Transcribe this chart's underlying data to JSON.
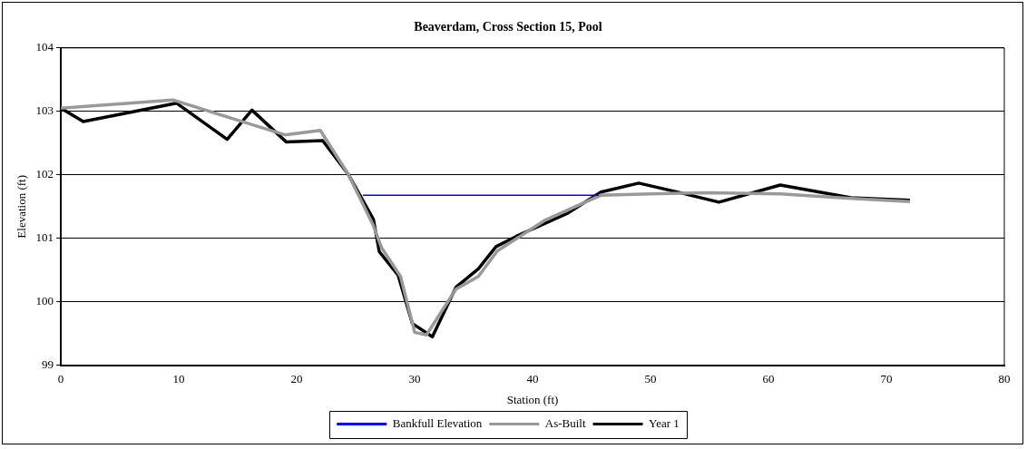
{
  "chart_data": {
    "type": "line",
    "title": "Beaverdam, Cross Section 15, Pool",
    "xlabel": "Station (ft)",
    "ylabel": "Elevation (ft)",
    "xlim": [
      0,
      80
    ],
    "xticks": [
      0,
      10,
      20,
      30,
      40,
      50,
      60,
      70,
      80
    ],
    "ylim": [
      99,
      104
    ],
    "yticks": [
      99,
      100,
      101,
      102,
      103,
      104
    ],
    "grid": "y",
    "legend": "bottom",
    "marker": "none",
    "line_style": "solid",
    "series": [
      {
        "name": "Bankfull Elevation",
        "color": "#0000ff",
        "x": [
          25.6,
          45.6
        ],
        "values": [
          101.68,
          101.68
        ]
      },
      {
        "name": "As-Built",
        "color": "#999999",
        "x": [
          0,
          9.5,
          19,
          22,
          24.4,
          26.5,
          27.2,
          28.8,
          30,
          31,
          33.5,
          35.4,
          37,
          41,
          45.8,
          50,
          55,
          61,
          67,
          72
        ],
        "values": [
          103.05,
          103.18,
          102.63,
          102.7,
          102.0,
          101.2,
          100.85,
          100.4,
          99.52,
          99.48,
          100.2,
          100.4,
          100.8,
          101.28,
          101.68,
          101.7,
          101.72,
          101.7,
          101.63,
          101.58
        ]
      },
      {
        "name": "Year 1",
        "color": "#000000",
        "x": [
          0,
          1.9,
          9.8,
          14.1,
          16.2,
          19.1,
          22.2,
          24.4,
          26.5,
          27,
          28.6,
          29.8,
          31.5,
          33.5,
          35.4,
          36.9,
          38.6,
          40,
          43,
          45.8,
          49,
          52.5,
          55.8,
          61,
          67,
          72
        ],
        "values": [
          103.05,
          102.84,
          103.13,
          102.56,
          103.02,
          102.52,
          102.54,
          102.0,
          101.3,
          100.79,
          100.42,
          99.66,
          99.45,
          100.23,
          100.52,
          100.87,
          101.03,
          101.15,
          101.4,
          101.73,
          101.87,
          101.72,
          101.57,
          101.84,
          101.64,
          101.6
        ]
      }
    ]
  }
}
